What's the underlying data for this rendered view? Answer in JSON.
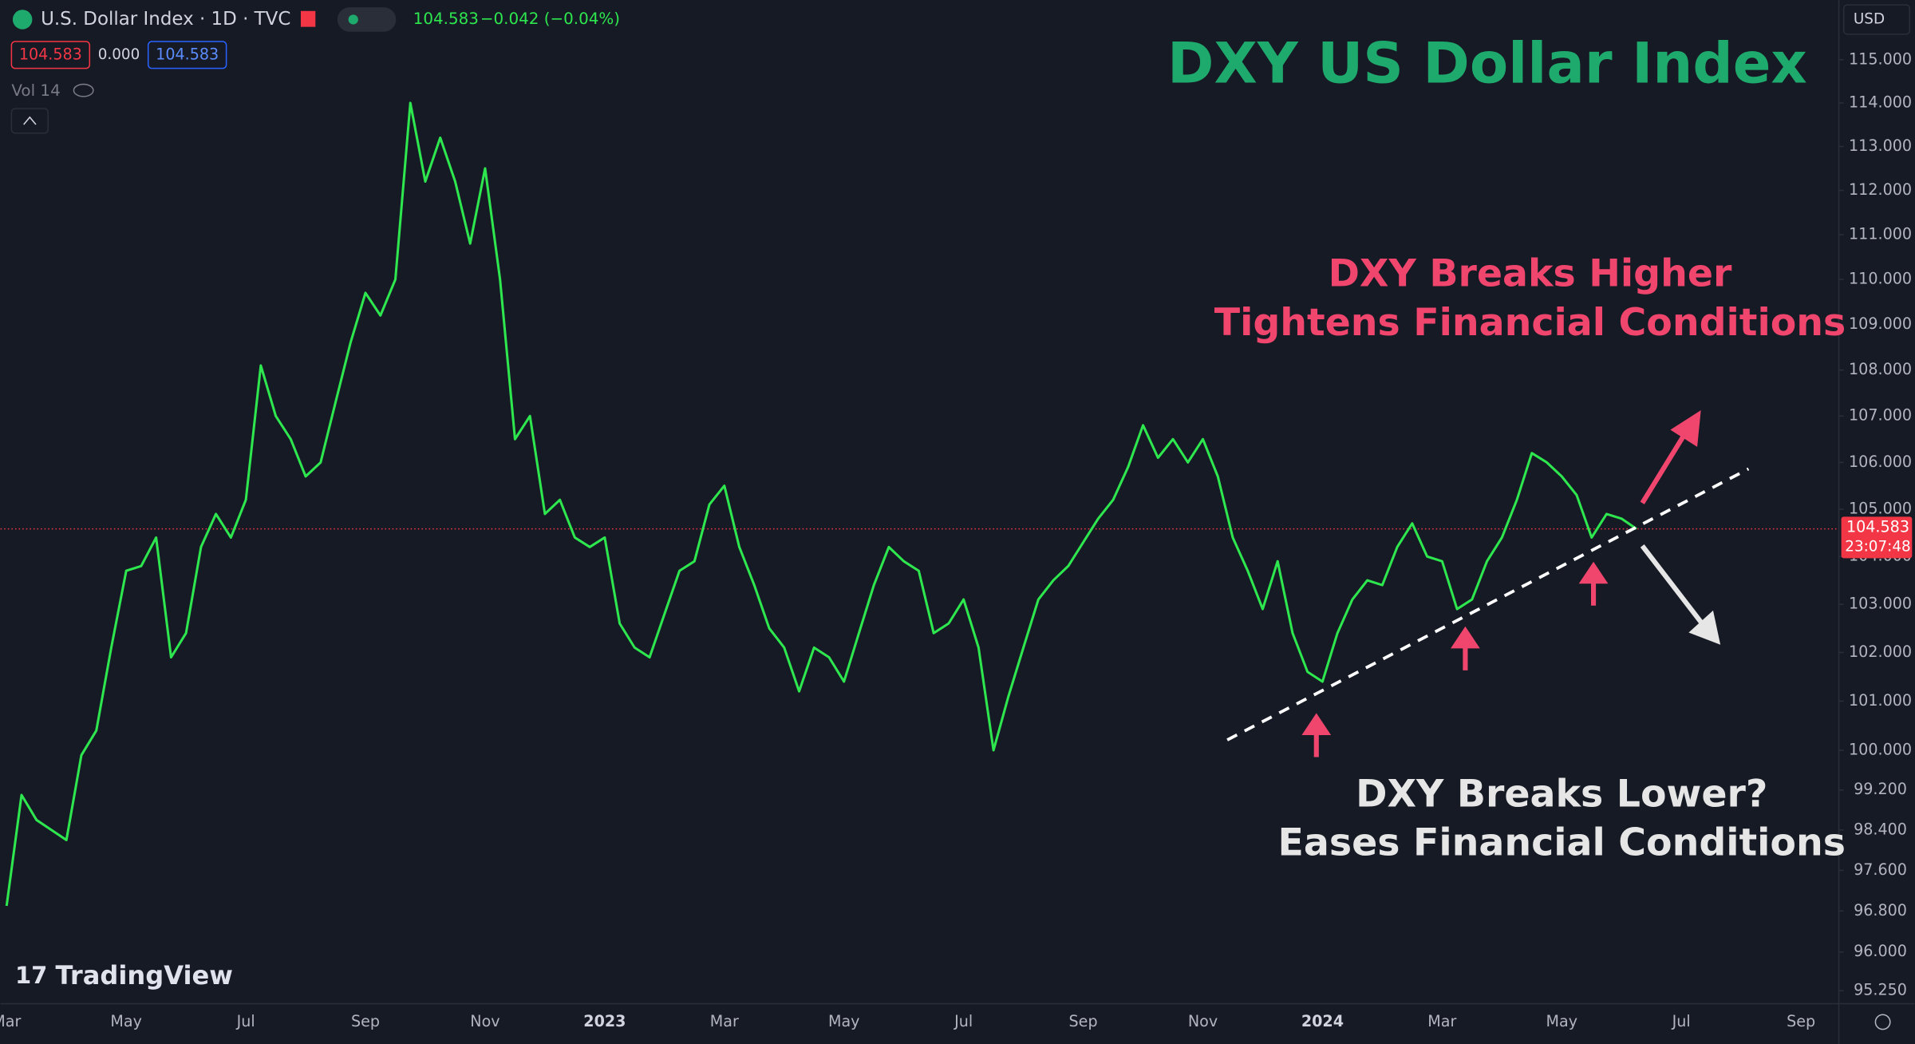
{
  "header": {
    "symbol": "U.S. Dollar Index · 1D · TVC",
    "last": "104.583",
    "change": "−0.042 (−0.04%)",
    "sell": "104.583",
    "spread": "0.000",
    "buy": "104.583",
    "volume": "Vol 14",
    "currency": "USD",
    "brand": "TradingView"
  },
  "chart_data": {
    "type": "line",
    "title": "DXY US Dollar Index",
    "annotations": [
      "DXY Breaks Higher",
      "Tightens Financial Conditions",
      "DXY Breaks Lower?",
      "Eases Financial Conditions"
    ],
    "color": "#2ee64e",
    "log_scale": true,
    "grid": false,
    "categories": [
      "Mar",
      null,
      null,
      null,
      null,
      null,
      null,
      null,
      "May",
      null,
      null,
      null,
      null,
      null,
      null,
      null,
      "Jul",
      null,
      null,
      null,
      null,
      null,
      null,
      null,
      "Sep",
      null,
      null,
      null,
      null,
      null,
      null,
      null,
      "Nov",
      null,
      null,
      null,
      null,
      null,
      null,
      null,
      "2023",
      null,
      null,
      null,
      null,
      null,
      null,
      null,
      "Mar",
      null,
      null,
      null,
      null,
      null,
      null,
      null,
      "May",
      null,
      null,
      null,
      null,
      null,
      null,
      null,
      "Jul",
      null,
      null,
      null,
      null,
      null,
      null,
      null,
      "Sep",
      null,
      null,
      null,
      null,
      null,
      null,
      null,
      "Nov",
      null,
      null,
      null,
      null,
      null,
      null,
      null,
      "2024",
      null,
      null,
      null,
      null,
      null,
      null,
      null,
      "Mar",
      null,
      null,
      null,
      null,
      null,
      null,
      null,
      "May",
      null,
      null,
      null,
      null,
      null,
      null,
      null,
      "Jul",
      null,
      null,
      null,
      null,
      null,
      null,
      null,
      "Sep"
    ],
    "values": [
      96.9,
      99.1,
      98.6,
      98.4,
      98.2,
      99.9,
      100.4,
      102.1,
      103.7,
      103.8,
      104.4,
      101.9,
      102.4,
      104.2,
      104.9,
      104.4,
      105.2,
      108.1,
      107.0,
      106.5,
      105.7,
      106.0,
      107.3,
      108.6,
      109.7,
      109.2,
      110.0,
      114.0,
      112.2,
      113.2,
      112.2,
      110.8,
      112.5,
      110.0,
      106.5,
      107.0,
      104.9,
      105.2,
      104.4,
      104.2,
      104.4,
      102.6,
      102.1,
      101.9,
      102.8,
      103.7,
      103.9,
      105.1,
      105.5,
      104.2,
      103.4,
      102.5,
      102.1,
      101.2,
      102.1,
      101.9,
      101.4,
      102.4,
      103.4,
      104.2,
      103.9,
      103.7,
      102.4,
      102.6,
      103.1,
      102.1,
      100.0,
      101.1,
      102.1,
      103.1,
      103.5,
      103.8,
      104.3,
      104.8,
      105.2,
      105.9,
      106.8,
      106.1,
      106.5,
      106.0,
      106.5,
      105.7,
      104.4,
      103.7,
      102.9,
      103.9,
      102.4,
      101.6,
      101.4,
      102.4,
      103.1,
      103.5,
      103.4,
      104.2,
      104.7,
      104.0,
      103.9,
      102.9,
      103.1,
      103.9,
      104.4,
      105.2,
      106.2,
      106.0,
      105.7,
      105.3,
      104.4,
      104.9,
      104.8,
      104.583,
      null,
      null,
      null,
      null,
      null,
      null,
      null,
      null,
      null,
      null,
      null
    ],
    "ylim": [
      95.0,
      116.4
    ],
    "yticks": [
      {
        "value": 95.25,
        "label": "95.250"
      },
      {
        "value": 96,
        "label": "96.000"
      },
      {
        "value": 96.8,
        "label": "96.800"
      },
      {
        "value": 97.6,
        "label": "97.600"
      },
      {
        "value": 98.4,
        "label": "98.400"
      },
      {
        "value": 99.2,
        "label": "99.200"
      },
      {
        "value": 100,
        "label": "100.000"
      },
      {
        "value": 101,
        "label": "101.000"
      },
      {
        "value": 102,
        "label": "102.000"
      },
      {
        "value": 103,
        "label": "103.000"
      },
      {
        "value": 104,
        "label": "104.000"
      },
      {
        "value": 105,
        "label": "105.000"
      },
      {
        "value": 106,
        "label": "106.000"
      },
      {
        "value": 107,
        "label": "107.000"
      },
      {
        "value": 108,
        "label": "108.000"
      },
      {
        "value": 109,
        "label": "109.000"
      },
      {
        "value": 110,
        "label": "110.000"
      },
      {
        "value": 111,
        "label": "111.000"
      },
      {
        "value": 112,
        "label": "112.000"
      },
      {
        "value": 113,
        "label": "113.000"
      },
      {
        "value": 114,
        "label": "114.000"
      },
      {
        "value": 115,
        "label": "115.000"
      }
    ],
    "price_line": {
      "value": 104.583,
      "label": "104.583",
      "countdown": "23:07:48",
      "color": "#f23645"
    }
  }
}
